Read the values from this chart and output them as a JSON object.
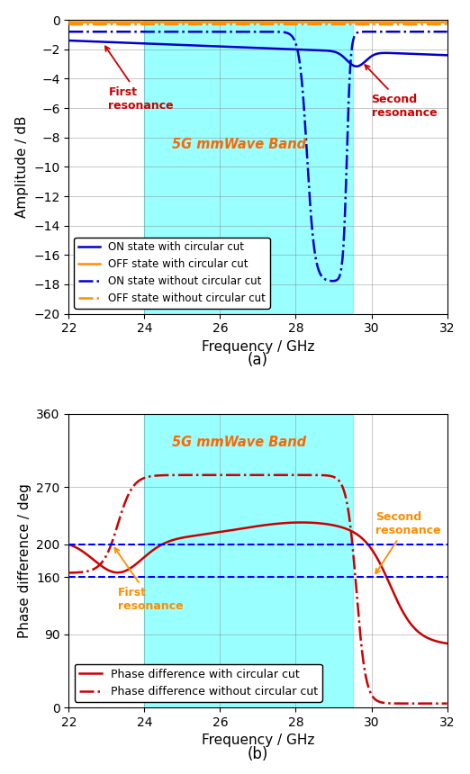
{
  "freq_range": [
    22,
    32
  ],
  "band_start": 24,
  "band_end": 29.5,
  "band_color": "#00FFFF",
  "band_alpha": 0.4,
  "plot_a": {
    "ylabel": "Amplitude / dB",
    "xlabel": "Frequency / GHz",
    "ylim": [
      -20,
      0
    ],
    "yticks": [
      0,
      -2,
      -4,
      -6,
      -8,
      -10,
      -12,
      -14,
      -16,
      -18,
      -20
    ],
    "xticks": [
      22,
      24,
      26,
      28,
      30,
      32
    ],
    "band_label": "5G mmWave Band",
    "band_label_color": "#FF6600",
    "legend_entries": [
      "ON state with circular cut",
      "OFF state with circular cut",
      "ON state without circular cut",
      "OFF state without circular cut"
    ]
  },
  "plot_b": {
    "ylabel": "Phase difference / deg",
    "xlabel": "Frequency / GHz",
    "ylim": [
      0,
      360
    ],
    "yticks": [
      0,
      90,
      160,
      200,
      270,
      360
    ],
    "xticks": [
      22,
      24,
      26,
      28,
      30,
      32
    ],
    "hline1": 200,
    "hline2": 160,
    "band_label": "5G mmWave Band",
    "band_label_color": "#FF6600",
    "legend_entries": [
      "Phase difference with circular cut",
      "Phase difference without circular cut"
    ]
  },
  "colors": {
    "blue": "#0000CC",
    "orange": "#FF8C00",
    "red": "#CC0000"
  },
  "annotation_color_red": "#CC0000",
  "annotation_color_orange": "#FF8C00"
}
